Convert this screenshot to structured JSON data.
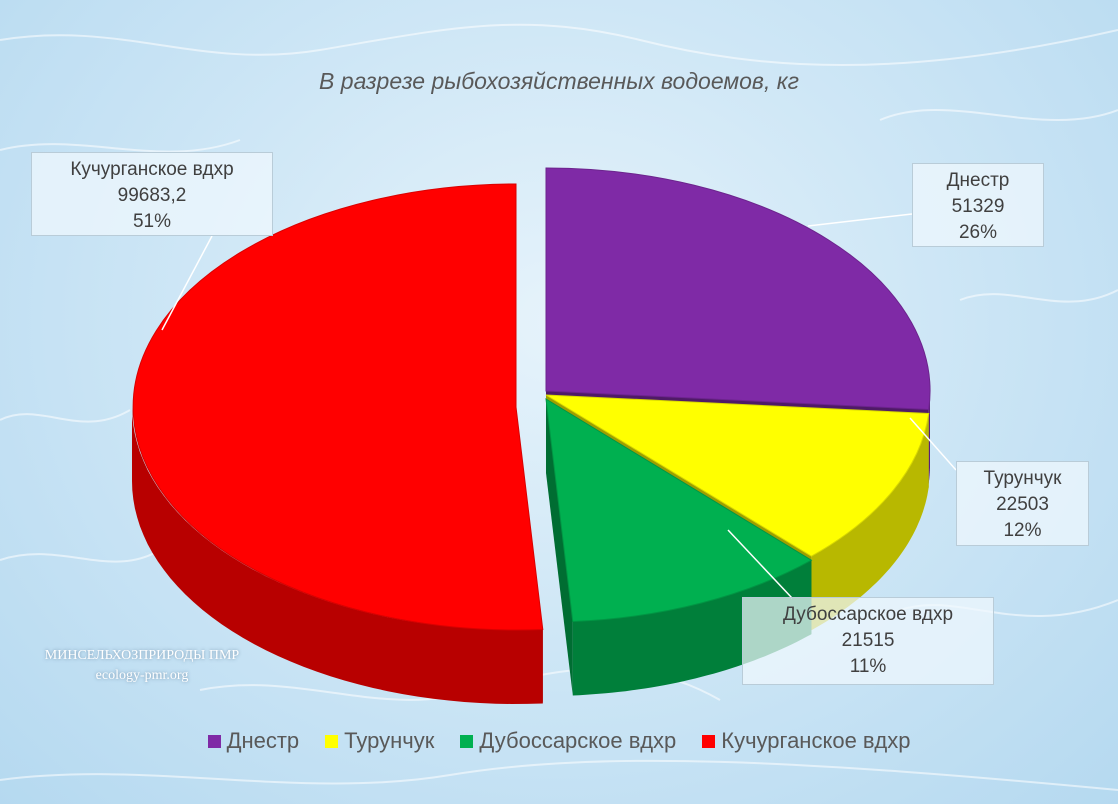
{
  "chart_data": {
    "type": "pie",
    "title": "В разрезе рыбохозяйственных водоемов, кг",
    "slices": [
      {
        "name": "Днестр",
        "value": 51329,
        "value_label": "51329",
        "percent": "26%",
        "color": "#7f2aa6"
      },
      {
        "name": "Турунчук",
        "value": 22503,
        "value_label": "22503",
        "percent": "12%",
        "color": "#ffff00"
      },
      {
        "name": "Дубоссарское вдхр",
        "value": 21515,
        "value_label": "21515",
        "percent": "11%",
        "color": "#00b050"
      },
      {
        "name": "Кучурганское вдхр",
        "value": 99683.2,
        "value_label": "99683,2",
        "percent": "51%",
        "color": "#ff0000"
      }
    ],
    "three_d": true,
    "exploded": true,
    "legend_position": "bottom"
  },
  "watermark": {
    "line1": "МИНСЕЛЬХОЗПРИРОДЫ ПМР",
    "line2": "ecology-pmr.org"
  }
}
